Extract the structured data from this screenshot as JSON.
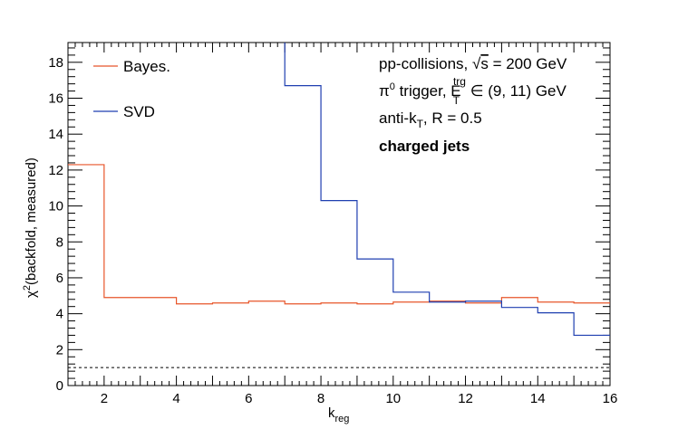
{
  "chart_data": {
    "type": "line",
    "step": true,
    "title": "",
    "xlabel": "k",
    "xlabel_sub": "reg",
    "ylabel": "χ²(backfold, measured)",
    "xlim": [
      1,
      16
    ],
    "ylim": [
      0,
      19.1
    ],
    "x_ticks": [
      2,
      4,
      6,
      8,
      10,
      12,
      14,
      16
    ],
    "y_ticks": [
      0,
      2,
      4,
      6,
      8,
      10,
      12,
      14,
      16,
      18
    ],
    "bin_edges": [
      1,
      2,
      3,
      4,
      5,
      6,
      7,
      8,
      9,
      10,
      11,
      12,
      13,
      14,
      15,
      16
    ],
    "series": [
      {
        "name": "Bayes.",
        "color": "#e8552a",
        "values": [
          12.3,
          4.9,
          4.9,
          4.55,
          4.6,
          4.7,
          4.55,
          4.6,
          4.55,
          4.65,
          4.7,
          4.6,
          4.9,
          4.65,
          4.6
        ]
      },
      {
        "name": "SVD",
        "color": "#1f3fb0",
        "values": [
          null,
          null,
          null,
          null,
          null,
          null,
          16.7,
          10.3,
          7.05,
          5.2,
          4.65,
          4.7,
          4.35,
          4.05,
          2.8
        ]
      }
    ],
    "reference_line": {
      "y": 1.0,
      "style": "dashed",
      "color": "#000000"
    },
    "legend": {
      "position": "top-left"
    },
    "annotations": [
      "pp-collisions, √s = 200 GeV",
      "π⁰ trigger, E_T^trg ∈ (9, 11) GeV",
      "anti-k_T, R = 0.5",
      "charged jets"
    ],
    "annotation_parts": {
      "line1_a": "pp-collisions, ",
      "line1_sqrt": "√",
      "line1_s": "s",
      "line1_b": " = 200 GeV",
      "line2_a": "π",
      "line2_sup0": "0",
      "line2_b": " trigger, E",
      "line2_sub": "T",
      "line2_sup": "trg",
      "line2_c": " ∈ (9, 11) GeV",
      "line3_a": "anti-k",
      "line3_sub": "T",
      "line3_b": ", R = 0.5",
      "line4": "charged jets"
    },
    "ylabel_parts": {
      "a": "χ",
      "sup": "2",
      "b": "(backfold, measured)"
    }
  }
}
